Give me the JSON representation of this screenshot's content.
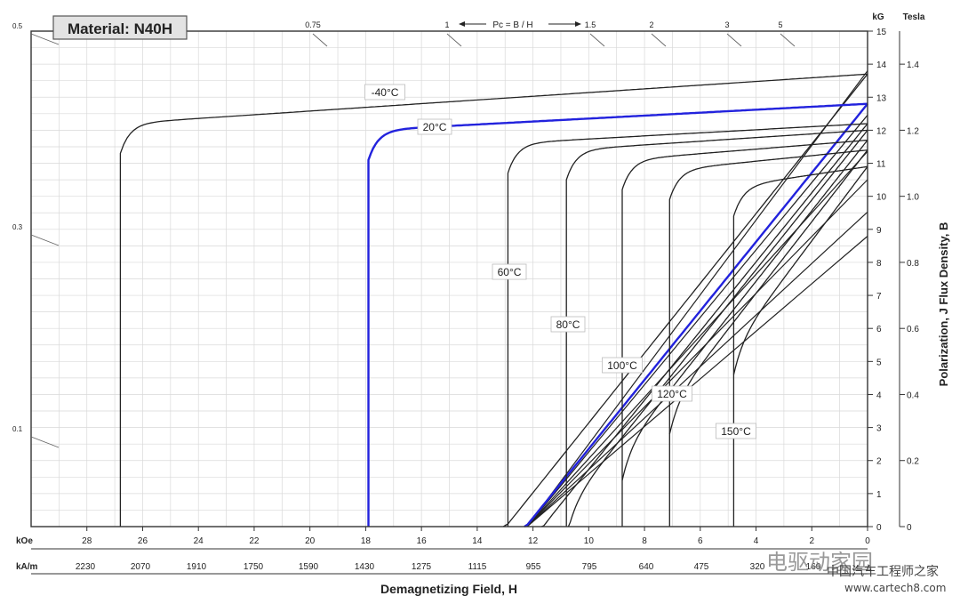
{
  "chart_data": {
    "type": "line",
    "title": "Material: N40H",
    "xlabel": "Demagnetizing Field, H",
    "ylabel_right": "Polarization,   J      Flux Density,  B",
    "x_units": {
      "primary": "kOe",
      "secondary": "kA/m"
    },
    "y_units": {
      "primary": "kG",
      "secondary": "Tesla"
    },
    "xlim": [
      30,
      0
    ],
    "ylim": [
      0,
      15
    ],
    "x_ticks_koe": [
      "28",
      "26",
      "24",
      "22",
      "20",
      "18",
      "16",
      "14",
      "12",
      "10",
      "8",
      "6",
      "4",
      "2",
      "0"
    ],
    "x_ticks_kam": [
      "2230",
      "2070",
      "1910",
      "1750",
      "1590",
      "1430",
      "1275",
      "1115",
      "955",
      "795",
      "640",
      "475",
      "320",
      "160"
    ],
    "y_ticks_kg": [
      "0",
      "1",
      "2",
      "3",
      "4",
      "5",
      "6",
      "7",
      "8",
      "9",
      "10",
      "11",
      "12",
      "13",
      "14",
      "15"
    ],
    "y_ticks_tesla": [
      "0",
      "0.2",
      "0.4",
      "0.6",
      "0.8",
      "1.0",
      "1.2",
      "1.4"
    ],
    "pc_label": "Pc = B / H",
    "pc_ticks_top": [
      "0.75",
      "1",
      "1.5",
      "2",
      "3",
      "5"
    ],
    "pc_ticks_left": [
      "0.5",
      "0.3",
      "0.1"
    ],
    "series": [
      {
        "name": "-40°C",
        "color": "#222222",
        "Br": 13.7,
        "Hcj": 26.8,
        "nearly_flat_kG": 12.2
      },
      {
        "name": "20°C",
        "color": "#2222dd",
        "Br": 12.8,
        "Hcj": 17.9,
        "nearly_flat_kG": 12.0
      },
      {
        "name": "60°C",
        "color": "#222222",
        "Br": 12.2,
        "Hcj": 12.9,
        "nearly_flat_kG": 11.6
      },
      {
        "name": "80°C",
        "color": "#222222",
        "Br": 12.0,
        "Hcj": 10.8,
        "nearly_flat_kG": 11.4
      },
      {
        "name": "100°C",
        "color": "#222222",
        "Br": 11.7,
        "Hcj": 8.8,
        "nearly_flat_kG": 11.1
      },
      {
        "name": "120°C",
        "color": "#222222",
        "Br": 11.4,
        "Hcj": 7.1,
        "nearly_flat_kG": 10.8
      },
      {
        "name": "150°C",
        "color": "#222222",
        "Br": 10.9,
        "Hcj": 4.8,
        "nearly_flat_kG": 10.3
      }
    ],
    "grid": true
  },
  "watermark": {
    "line1": "电驱动家园",
    "line2": "中国汽车工程师之家",
    "line3": "www.cartech8.com"
  }
}
